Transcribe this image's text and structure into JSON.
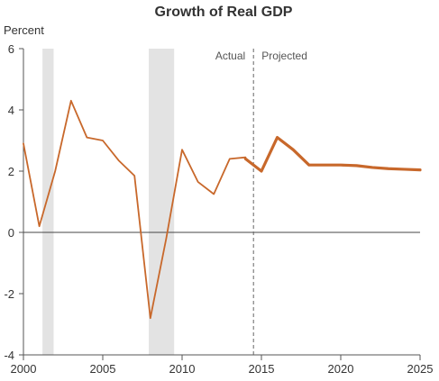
{
  "chart_data": {
    "type": "line",
    "title": "Growth of Real GDP",
    "xlabel": "",
    "ylabel": "Percent",
    "xlim": [
      2000,
      2025
    ],
    "ylim": [
      -4,
      6
    ],
    "x_ticks": [
      2000,
      2005,
      2010,
      2015,
      2020,
      2025
    ],
    "y_ticks": [
      -4,
      -2,
      0,
      2,
      4,
      6
    ],
    "grid": false,
    "recession_shading": [
      {
        "start": 2001.2,
        "end": 2001.9
      },
      {
        "start": 2007.9,
        "end": 2009.5
      }
    ],
    "divider": {
      "x": 2014.5,
      "left_label": "Actual",
      "right_label": "Projected"
    },
    "series": [
      {
        "color": "#c8682b",
        "x": [
          2000,
          2001,
          2002,
          2003,
          2004,
          2005,
          2006,
          2007,
          2008,
          2009,
          2010,
          2011,
          2012,
          2013,
          2014
        ],
        "values": [
          2.9,
          0.2,
          2.0,
          4.3,
          3.1,
          3.0,
          2.35,
          1.85,
          -2.8,
          -0.2,
          2.7,
          1.65,
          1.25,
          2.4,
          2.45
        ]
      },
      {
        "color": "#c8682b",
        "x": [
          2014,
          2015,
          2016,
          2017,
          2018,
          2019,
          2020,
          2021,
          2022,
          2023,
          2024,
          2025
        ],
        "values": [
          2.4,
          2.0,
          3.1,
          2.7,
          2.2,
          2.2,
          2.2,
          2.18,
          2.12,
          2.08,
          2.06,
          2.04
        ]
      }
    ]
  }
}
